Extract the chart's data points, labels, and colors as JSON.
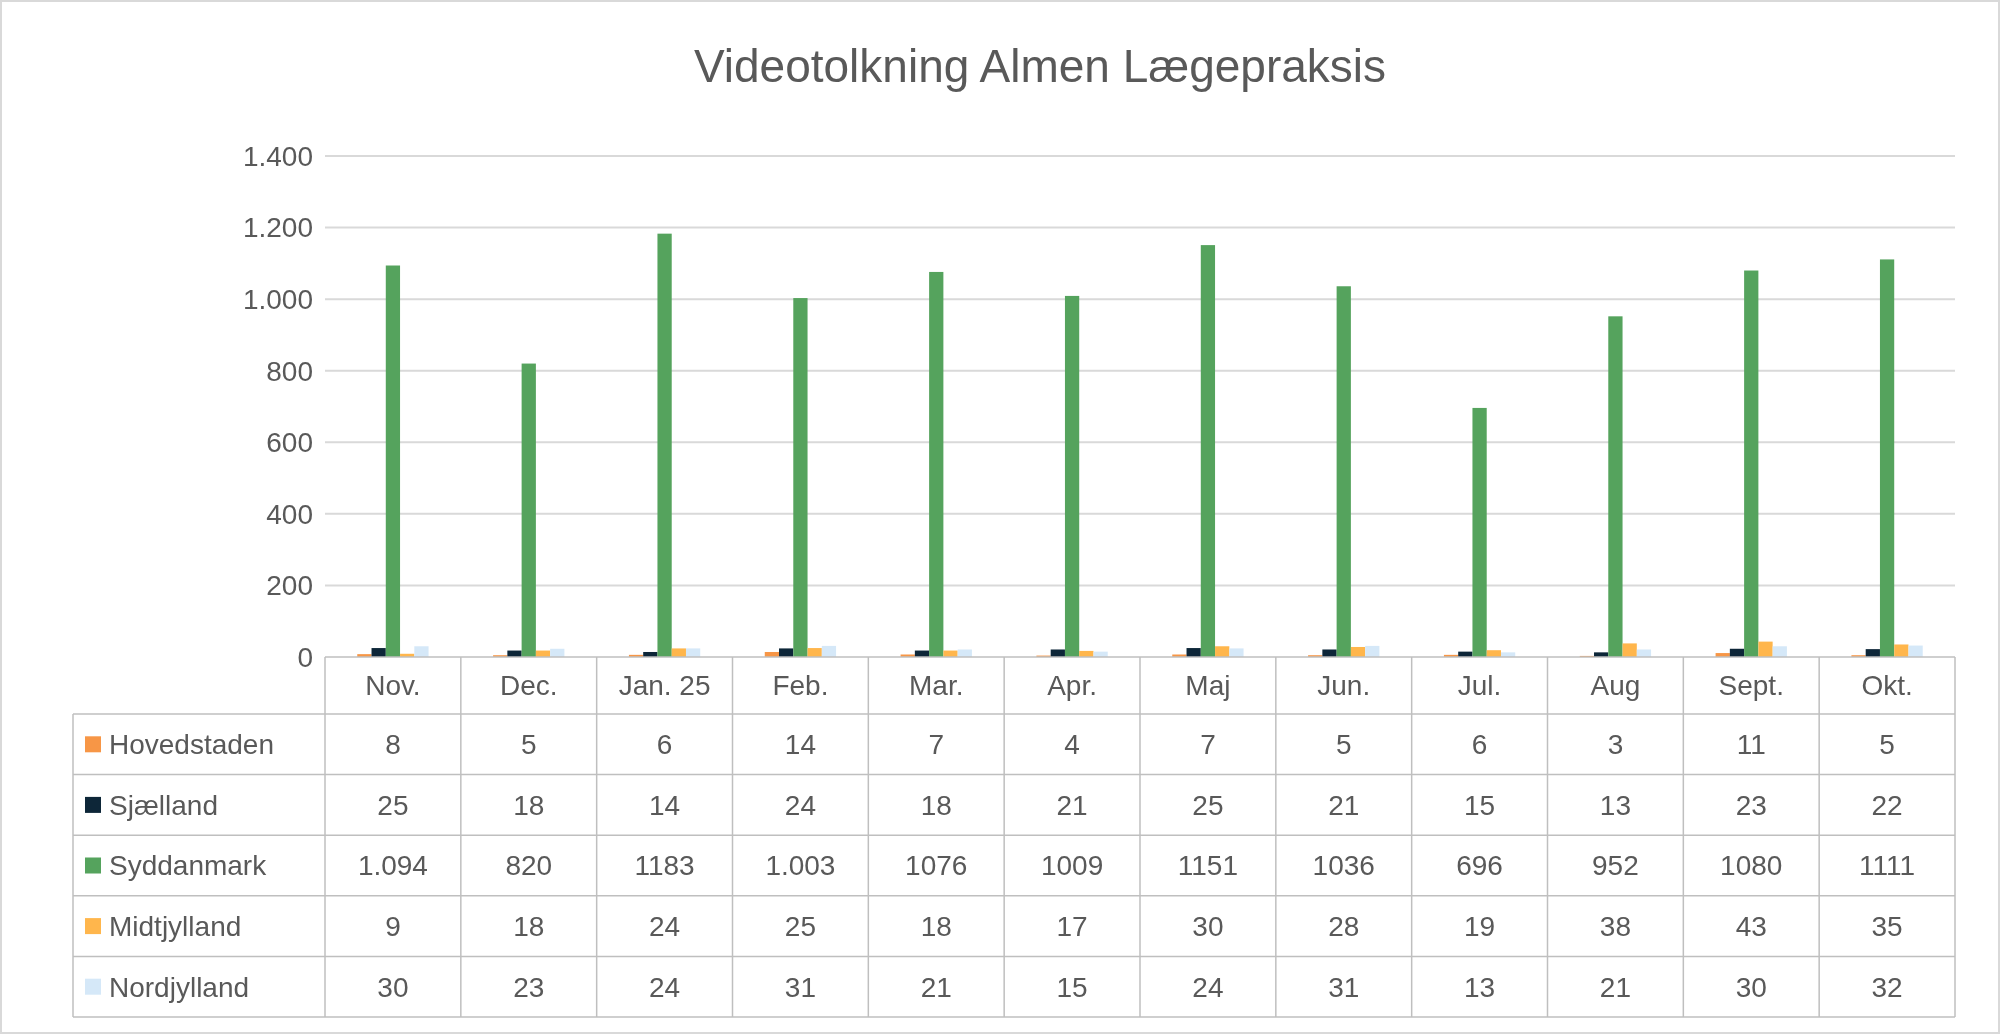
{
  "chart_data": {
    "type": "bar",
    "title": "Videotolkning Almen Lægepraksis",
    "categories": [
      "Nov.",
      "Dec.",
      "Jan. 25",
      "Feb.",
      "Mar.",
      "Apr.",
      "Maj",
      "Jun.",
      "Jul.",
      "Aug",
      "Sept.",
      "Okt."
    ],
    "series": [
      {
        "name": "Hovedstaden",
        "color": "#f79646",
        "values": [
          8,
          5,
          6,
          14,
          7,
          4,
          7,
          5,
          6,
          3,
          11,
          5
        ],
        "value_labels": [
          "8",
          "5",
          "6",
          "14",
          "7",
          "4",
          "7",
          "5",
          "6",
          "3",
          "11",
          "5"
        ]
      },
      {
        "name": "Sjælland",
        "color": "#0d2638",
        "values": [
          25,
          18,
          14,
          24,
          18,
          21,
          25,
          21,
          15,
          13,
          23,
          22
        ],
        "value_labels": [
          "25",
          "18",
          "14",
          "24",
          "18",
          "21",
          "25",
          "21",
          "15",
          "13",
          "23",
          "22"
        ]
      },
      {
        "name": "Syddanmark",
        "color": "#55a35d",
        "values": [
          1094,
          820,
          1183,
          1003,
          1076,
          1009,
          1151,
          1036,
          696,
          952,
          1080,
          1111
        ],
        "value_labels": [
          "1.094",
          "820",
          "1183",
          "1.003",
          "1076",
          "1009",
          "1151",
          "1036",
          "696",
          "952",
          "1080",
          "1111"
        ]
      },
      {
        "name": "Midtjylland",
        "color": "#ffb64c",
        "values": [
          9,
          18,
          24,
          25,
          18,
          17,
          30,
          28,
          19,
          38,
          43,
          35
        ],
        "value_labels": [
          "9",
          "18",
          "24",
          "25",
          "18",
          "17",
          "30",
          "28",
          "19",
          "38",
          "43",
          "35"
        ]
      },
      {
        "name": "Nordjylland",
        "color": "#d5e8f8",
        "values": [
          30,
          23,
          24,
          31,
          21,
          15,
          24,
          31,
          13,
          21,
          30,
          32
        ],
        "value_labels": [
          "30",
          "23",
          "24",
          "31",
          "21",
          "15",
          "24",
          "31",
          "13",
          "21",
          "30",
          "32"
        ]
      }
    ],
    "ylim": [
      0,
      1400
    ],
    "yticks": [
      0,
      200,
      400,
      600,
      800,
      {
        "value": 1000,
        "label": "1.000"
      },
      {
        "value": 1200,
        "label": "1.200"
      },
      {
        "value": 1400,
        "label": "1.400"
      }
    ],
    "grid": "y",
    "legend": "bottom"
  }
}
